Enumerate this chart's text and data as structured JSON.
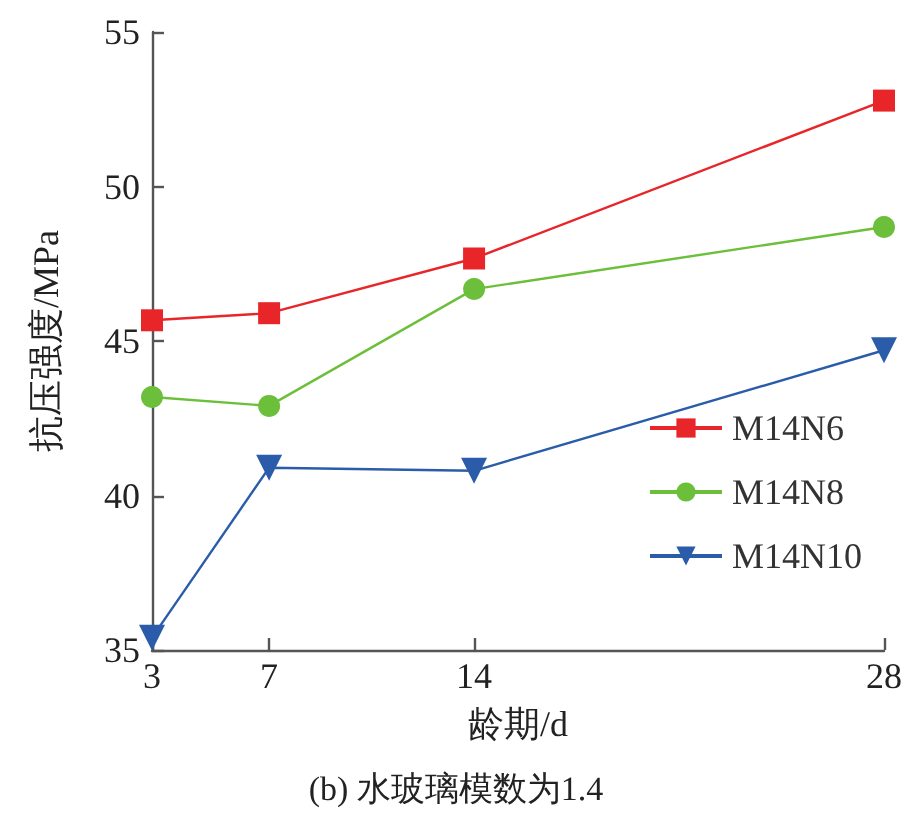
{
  "chart_data": {
    "type": "line",
    "title": "(b) 水玻璃模数为1.4",
    "xlabel": "龄期/d",
    "ylabel": "抗压强度/MPa",
    "x": [
      3,
      7,
      14,
      28
    ],
    "series": [
      {
        "name": "M14N6",
        "color": "#e8262a",
        "marker": "square",
        "values": [
          45.67,
          45.9,
          47.67,
          52.78
        ]
      },
      {
        "name": "M14N8",
        "color": "#6cbf3a",
        "marker": "circle",
        "values": [
          43.19,
          42.9,
          46.68,
          48.69
        ]
      },
      {
        "name": "M14N10",
        "color": "#2a5caa",
        "marker": "triangle",
        "values": [
          35.4,
          40.9,
          40.8,
          44.7
        ]
      }
    ],
    "xlim": [
      3,
      28
    ],
    "xticks": [
      3,
      7,
      14,
      28
    ],
    "ylim": [
      35,
      55
    ],
    "yticks": [
      35,
      40,
      45,
      50,
      55
    ],
    "grid": false,
    "legend": "right",
    "line_style": "solid"
  }
}
